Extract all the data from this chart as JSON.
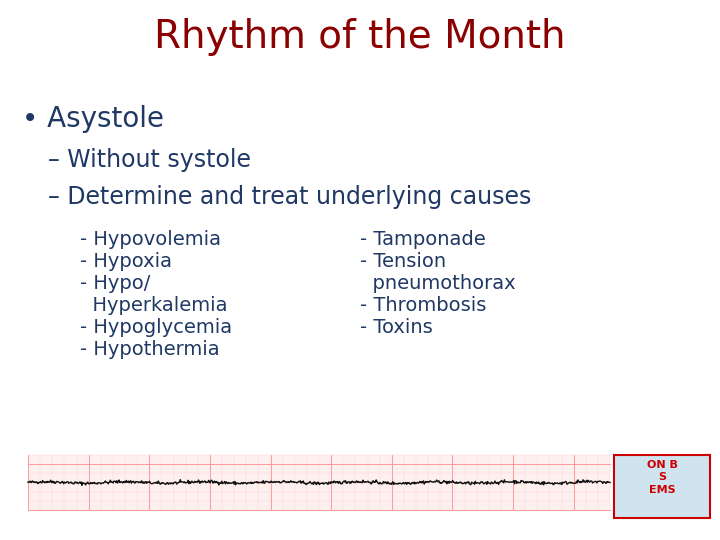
{
  "title": "Rhythm of the Month",
  "title_color": "#8B0000",
  "title_fontsize": 28,
  "bg_color": "#FFFFFF",
  "bullet_color": "#1F3864",
  "bullet_text": "Asystole",
  "bullet_fontsize": 20,
  "sub_fontsize": 17,
  "item_fontsize": 14,
  "sub1": "– Without systole",
  "sub2": "– Determine and treat underlying causes",
  "col1_lines": [
    "- Hypovolemia",
    "- Hypoxia",
    "- Hypo/",
    "  Hyperkalemia",
    "- Hypoglycemia",
    "- Hypothermia"
  ],
  "col2_lines": [
    "- Tamponade",
    "- Tension",
    "  pneumothorax",
    "- Thrombosis",
    "- Toxins"
  ],
  "ecg_color": "#111111",
  "ecg_grid_light": "#FFCCCC",
  "ecg_grid_dark": "#FF9999",
  "ecg_bg": "#FFF0F0",
  "logo_text": "ON B\nS\nEMS",
  "logo_color": "#CC0000",
  "logo_bg": "#D0E4F0"
}
